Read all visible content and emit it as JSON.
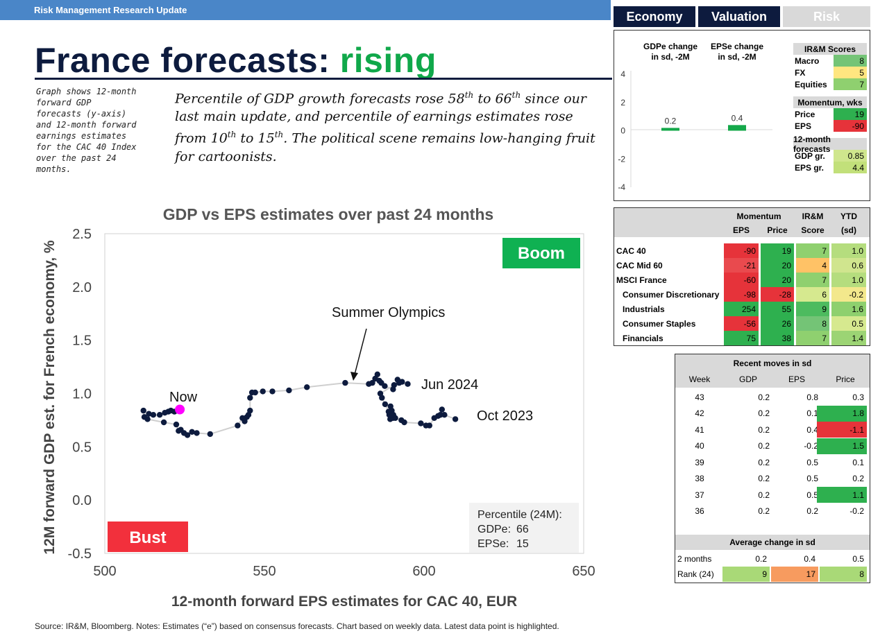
{
  "header": {
    "bar_label": "Risk Management Research Update",
    "tabs": [
      {
        "label": "Economy",
        "active": true
      },
      {
        "label": "Valuation",
        "active": true
      },
      {
        "label": "Risk",
        "active": false
      }
    ],
    "title_main": "France forecasts: ",
    "title_accent": "rising"
  },
  "side_note": "Graph shows 12-month forward GDP forecasts (y-axis) and 12-month forward earnings estimates for the CAC 40 Index over the past 24 months.",
  "summary": {
    "p1": "Percentile of GDP growth forecasts rose 58",
    "s1": "th",
    "p2": " to 66",
    "s2": "th",
    "p3": " since our last main update, and percentile of earnings estimates rose from 10",
    "s3": "th",
    "p4": " to 15",
    "s4": "th",
    "p5": ". The political scene remains low-hanging fruit for cartoonists."
  },
  "chart_data": [
    {
      "type": "scatter",
      "title": "GDP vs EPS estimates over past 24 months",
      "xlabel": "12-month forward EPS estimates for CAC 40, EUR",
      "ylabel": "12M forward GDP est. for French economy, %",
      "xlim": [
        500,
        650
      ],
      "ylim": [
        -0.5,
        2.5
      ],
      "xticks": [
        "500",
        "550",
        "600",
        "650"
      ],
      "yticks": [
        "2.5",
        "2.0",
        "1.5",
        "1.0",
        "0.5",
        "0.0",
        "-0.5"
      ],
      "x": [
        609.8,
        606.4,
        605.6,
        605.1,
        604.4,
        603.2,
        601.7,
        600.6,
        599.0,
        593.8,
        592.9,
        591.0,
        590.4,
        589.9,
        589.5,
        589.1,
        589.4,
        590.3,
        589.7,
        588.9,
        587.8,
        586.8,
        586.3,
        590.6,
        591.7,
        593.1,
        594.9,
        592.2,
        590.3,
        587.7,
        586.6,
        586.0,
        585.4,
        584.7,
        583.8,
        582.7,
        575.3,
        563.3,
        557.7,
        552.5,
        549.5,
        547.1,
        546.1,
        545.5,
        545.5,
        545.0,
        544.5,
        543.8,
        543.1,
        541.6,
        533.0,
        528.8,
        527.3,
        525.9,
        524.8,
        523.8,
        523.1,
        522.4,
        518.5,
        513.4,
        512.4,
        512.1,
        513.8,
        515.2,
        517.2,
        518.8,
        519.9,
        520.7,
        521.8
      ],
      "y": [
        0.76,
        0.8,
        0.85,
        0.8,
        0.79,
        0.77,
        0.7,
        0.7,
        0.72,
        0.73,
        0.75,
        0.77,
        0.8,
        0.84,
        0.88,
        0.8,
        0.76,
        0.77,
        0.8,
        0.83,
        0.9,
        0.96,
        1.0,
        1.08,
        1.13,
        1.11,
        1.09,
        1.1,
        1.04,
        1.07,
        1.1,
        1.12,
        1.18,
        1.14,
        1.1,
        1.09,
        1.1,
        1.06,
        1.03,
        1.02,
        1.02,
        1.01,
        1.01,
        0.96,
        0.84,
        0.8,
        0.78,
        0.74,
        0.77,
        0.7,
        0.62,
        0.63,
        0.64,
        0.61,
        0.63,
        0.66,
        0.65,
        0.71,
        0.73,
        0.76,
        0.78,
        0.84,
        0.81,
        0.8,
        0.8,
        0.82,
        0.83,
        0.84,
        0.83
      ],
      "now": {
        "x": 523.5,
        "y": 0.85
      },
      "annotations": [
        "Boom",
        "Bust",
        "Now",
        "Summer Olympics",
        "Jun 2024",
        "Oct 2023"
      ],
      "percentile_box": {
        "title": "Percentile (24M):",
        "gdp_label": "GDPe:",
        "gdp_value": "66",
        "eps_label": "EPSe:",
        "eps_value": "15"
      }
    },
    {
      "type": "bar",
      "categories": [
        "GDPe change in sd, -2M",
        "EPSe change in sd, -2M"
      ],
      "values": [
        0.2,
        0.4
      ],
      "value_labels": [
        "0.2",
        "0.4"
      ],
      "ylim": [
        -4,
        4
      ],
      "yticks": [
        "4",
        "2",
        "0",
        "-2",
        "-4"
      ]
    }
  ],
  "scores": {
    "title": "IR&M Scores",
    "rows": [
      {
        "label": "Macro",
        "value": "8",
        "color": "#74c476"
      },
      {
        "label": "FX",
        "value": "5",
        "color": "#ffe680"
      },
      {
        "label": "Equities",
        "value": "7",
        "color": "#8fd06f"
      }
    ],
    "momentum_title": "Momentum, wks",
    "momentum_rows": [
      {
        "label": "Price",
        "value": "19",
        "color": "#2eb04f"
      },
      {
        "label": "EPS",
        "value": "-90",
        "color": "#e6333a"
      }
    ],
    "forecast_title": "12-month forecasts",
    "forecast_rows": [
      {
        "label": "GDP gr.",
        "value": "0.85",
        "color": "#cfe68d"
      },
      {
        "label": "EPS gr.",
        "value": "4.4",
        "color": "#c2e07a"
      }
    ]
  },
  "momentum_table": {
    "headers": {
      "momentum": "Momentum",
      "eps": "EPS",
      "price": "Price",
      "irm": "IR&M",
      "score": "Score",
      "ytd": "YTD",
      "sd": "(sd)"
    },
    "rows": [
      {
        "name": "CAC 40",
        "eps": "-90",
        "price": "19",
        "score": "7",
        "ytd": "1.0",
        "c": [
          "#e6333a",
          "#2eb04f",
          "#8fd06f",
          "#b5dd7e"
        ]
      },
      {
        "name": "CAC Mid 60",
        "eps": "-21",
        "price": "20",
        "score": "4",
        "ytd": "0.6",
        "c": [
          "#e94a4e",
          "#2eb04f",
          "#ffc266",
          "#d0e58e"
        ]
      },
      {
        "name": "MSCI France",
        "eps": "-60",
        "price": "20",
        "score": "7",
        "ytd": "1.0",
        "c": [
          "#e6333a",
          "#2eb04f",
          "#8fd06f",
          "#b5dd7e"
        ]
      },
      {
        "name": "Consumer Discretionary",
        "eps": "-98",
        "price": "-28",
        "score": "6",
        "ytd": "-0.2",
        "c": [
          "#e6333a",
          "#e6333a",
          "#d6e98f",
          "#f3e88c"
        ]
      },
      {
        "name": "Industrials",
        "eps": "254",
        "price": "55",
        "score": "9",
        "ytd": "1.6",
        "c": [
          "#2eb04f",
          "#2eb04f",
          "#4dbb5f",
          "#8ed06e"
        ]
      },
      {
        "name": "Consumer Staples",
        "eps": "-56",
        "price": "26",
        "score": "8",
        "ytd": "0.5",
        "c": [
          "#e6333a",
          "#2eb04f",
          "#74c476",
          "#d6e98f"
        ]
      },
      {
        "name": "Financials",
        "eps": "75",
        "price": "38",
        "score": "7",
        "ytd": "1.4",
        "c": [
          "#2eb04f",
          "#2eb04f",
          "#8fd06f",
          "#9cd474"
        ]
      }
    ]
  },
  "recent_moves": {
    "title": "Recent moves in sd",
    "headers": [
      "Week",
      "GDP",
      "EPS",
      "Price"
    ],
    "rows": [
      {
        "week": "43",
        "gdp": "0.2",
        "eps": "0.8",
        "price": "0.3",
        "pc": ""
      },
      {
        "week": "42",
        "gdp": "0.2",
        "eps": "0.1",
        "price": "1.8",
        "pc": "#2eb04f"
      },
      {
        "week": "41",
        "gdp": "0.2",
        "eps": "0.4",
        "price": "-1.1",
        "pc": "#e6333a"
      },
      {
        "week": "40",
        "gdp": "0.2",
        "eps": "-0.2",
        "price": "1.5",
        "pc": "#2eb04f"
      },
      {
        "week": "39",
        "gdp": "0.2",
        "eps": "0.5",
        "price": "0.1",
        "pc": ""
      },
      {
        "week": "38",
        "gdp": "0.2",
        "eps": "0.5",
        "price": "0.2",
        "pc": ""
      },
      {
        "week": "37",
        "gdp": "0.2",
        "eps": "0.5",
        "price": "1.1",
        "pc": "#2eb04f"
      },
      {
        "week": "36",
        "gdp": "0.2",
        "eps": "0.2",
        "price": "-0.2",
        "pc": ""
      }
    ],
    "avg_title": "Average change in sd",
    "avg_rows": [
      {
        "label": "2 months",
        "gdp": "0.2",
        "eps": "0.4",
        "price": "0.5",
        "c": [
          "",
          "",
          ""
        ]
      },
      {
        "label": "Rank (24)",
        "gdp": "9",
        "eps": "17",
        "price": "8",
        "c": [
          "#a9d977",
          "#f79b5f",
          "#a9d977"
        ]
      }
    ]
  },
  "footer": "Source: IR&M, Bloomberg. Notes: Estimates (“e”) based on consensus forecasts. Chart based on weekly data. Latest data point is highlighted.",
  "colors": {
    "navy": "#0d1b3e",
    "green": "#10a84a",
    "boom": "#0fb152",
    "bust": "#f2303c",
    "highlight": "#ff00ff",
    "dot": "#0d1b3e"
  }
}
